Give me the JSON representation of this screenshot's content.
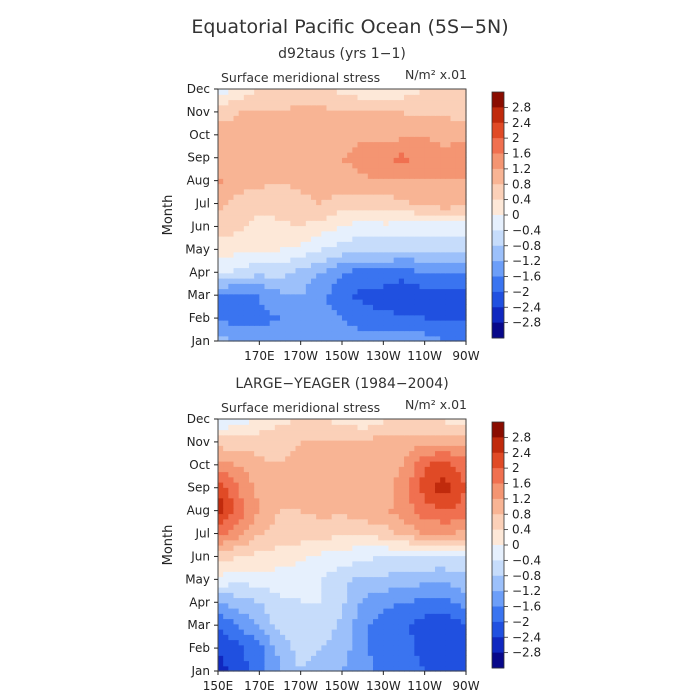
{
  "figure": {
    "title": "Equatorial Pacific Ocean (5S−5N)"
  },
  "chart_data": [
    {
      "type": "heatmap",
      "title": "d92taus (yrs 1−1)",
      "subtitle": "Surface meridional stress",
      "units_label": "N/m² x.01",
      "ylabel": "Month",
      "x_ticks": [
        "170E",
        "170W",
        "150W",
        "130W",
        "110W",
        "90W"
      ],
      "x_range": [
        "150E",
        "90W"
      ],
      "y_ticks": [
        "Jan",
        "Feb",
        "Mar",
        "Apr",
        "May",
        "Jun",
        "Jul",
        "Aug",
        "Sep",
        "Oct",
        "Nov",
        "Dec"
      ],
      "colorbar_levels": [
        "2.8",
        "2.4",
        "2",
        "1.6",
        "1.2",
        "0.8",
        "0.4",
        "0",
        "−0.4",
        "−0.8",
        "−1.2",
        "−1.6",
        "−2",
        "−2.4",
        "−2.8"
      ],
      "x_nodes": [
        "150E",
        "160E",
        "170E",
        "180",
        "170W",
        "160W",
        "150W",
        "140W",
        "130W",
        "120W",
        "110W",
        "100W",
        "90W"
      ],
      "months": [
        "Jan",
        "Feb",
        "Mar",
        "Apr",
        "May",
        "Jun",
        "Jul",
        "Aug",
        "Sep",
        "Oct",
        "Nov",
        "Dec"
      ],
      "values": [
        [
          -1.0,
          -1.3,
          -1.4,
          -1.4,
          -1.3,
          -1.2,
          -1.3,
          -1.4,
          -1.3,
          -1.3,
          -1.4,
          -1.6,
          -1.6
        ],
        [
          -1.6,
          -1.8,
          -1.7,
          -1.6,
          -1.5,
          -1.4,
          -1.6,
          -1.8,
          -1.9,
          -1.9,
          -2.0,
          -2.1,
          -2.0
        ],
        [
          -1.7,
          -1.8,
          -1.6,
          -1.3,
          -1.2,
          -1.5,
          -1.9,
          -2.1,
          -2.2,
          -2.4,
          -2.2,
          -2.2,
          -2.1
        ],
        [
          -0.3,
          -0.5,
          -0.7,
          -0.6,
          -1.0,
          -1.2,
          -1.6,
          -1.8,
          -1.7,
          -1.8,
          -1.6,
          -1.7,
          -1.5
        ],
        [
          0.2,
          0.1,
          0.0,
          0.0,
          -0.1,
          -0.4,
          -0.6,
          -0.7,
          -0.7,
          -0.8,
          -0.8,
          -0.7,
          -0.6
        ],
        [
          0.6,
          0.5,
          0.2,
          0.3,
          0.4,
          0.2,
          0.0,
          -0.2,
          -0.1,
          -0.2,
          -0.2,
          -0.2,
          -0.2
        ],
        [
          0.9,
          0.7,
          0.6,
          0.6,
          0.7,
          0.8,
          0.6,
          0.5,
          0.6,
          0.7,
          0.9,
          1.0,
          0.9
        ],
        [
          1.3,
          0.9,
          0.9,
          0.8,
          0.9,
          1.0,
          1.0,
          1.1,
          1.2,
          1.1,
          1.2,
          1.2,
          1.2
        ],
        [
          0.9,
          1.0,
          1.1,
          1.2,
          1.2,
          1.2,
          1.2,
          1.4,
          1.6,
          1.7,
          1.4,
          1.3,
          1.6
        ],
        [
          1.0,
          1.0,
          1.0,
          1.1,
          1.1,
          1.1,
          1.0,
          1.1,
          1.1,
          1.1,
          1.2,
          1.1,
          1.0
        ],
        [
          0.6,
          0.8,
          0.8,
          0.8,
          0.9,
          0.9,
          0.8,
          0.9,
          0.8,
          0.8,
          0.7,
          0.7,
          0.7
        ],
        [
          -0.2,
          0.1,
          0.4,
          0.6,
          0.6,
          0.5,
          0.3,
          0.1,
          0.0,
          0.2,
          0.4,
          0.5,
          0.4
        ]
      ]
    },
    {
      "type": "heatmap",
      "title": "LARGE−YEAGER (1984−2004)",
      "subtitle": "Surface meridional stress",
      "units_label": "N/m² x.01",
      "ylabel": "Month",
      "x_ticks": [
        "150E",
        "170E",
        "170W",
        "150W",
        "130W",
        "110W",
        "90W"
      ],
      "x_range": [
        "150E",
        "90W"
      ],
      "y_ticks": [
        "Jan",
        "Feb",
        "Mar",
        "Apr",
        "May",
        "Jun",
        "Jul",
        "Aug",
        "Sep",
        "Oct",
        "Nov",
        "Dec"
      ],
      "colorbar_levels": [
        "2.8",
        "2.4",
        "2",
        "1.6",
        "1.2",
        "0.8",
        "0.4",
        "0",
        "−0.4",
        "−0.8",
        "−1.2",
        "−1.6",
        "−2",
        "−2.4",
        "−2.8"
      ],
      "x_nodes": [
        "150E",
        "160E",
        "170E",
        "180",
        "170W",
        "160W",
        "150W",
        "140W",
        "130W",
        "120W",
        "110W",
        "100W",
        "90W"
      ],
      "months": [
        "Jan",
        "Feb",
        "Mar",
        "Apr",
        "May",
        "Jun",
        "Jul",
        "Aug",
        "Sep",
        "Oct",
        "Nov",
        "Dec"
      ],
      "values": [
        [
          -2.6,
          -2.2,
          -1.8,
          -1.2,
          -0.8,
          -1.0,
          -1.2,
          -1.5,
          -1.7,
          -1.8,
          -2.0,
          -2.1,
          -2.0
        ],
        [
          -2.4,
          -2.1,
          -1.7,
          -1.1,
          -0.6,
          -0.8,
          -1.0,
          -1.5,
          -1.8,
          -1.9,
          -2.1,
          -2.3,
          -2.0
        ],
        [
          -2.0,
          -1.6,
          -1.2,
          -0.6,
          -0.5,
          -0.6,
          -0.9,
          -1.5,
          -1.8,
          -1.9,
          -2.2,
          -2.3,
          -2.0
        ],
        [
          -1.2,
          -1.0,
          -0.8,
          -0.5,
          -0.4,
          -0.4,
          -0.7,
          -1.3,
          -1.5,
          -1.6,
          -1.7,
          -1.7,
          -1.5
        ],
        [
          -0.1,
          -0.3,
          -0.2,
          -0.2,
          -0.3,
          -0.4,
          -0.7,
          -0.9,
          -0.9,
          -1.0,
          -1.1,
          -1.1,
          -0.9
        ],
        [
          0.6,
          0.4,
          0.3,
          0.2,
          0.1,
          -0.1,
          -0.2,
          -0.3,
          -0.4,
          -0.5,
          -0.4,
          -0.5,
          -0.4
        ],
        [
          1.8,
          1.3,
          0.8,
          0.6,
          0.6,
          0.6,
          0.4,
          0.4,
          0.6,
          0.9,
          1.2,
          1.2,
          1.1
        ],
        [
          2.6,
          1.8,
          1.2,
          0.8,
          0.8,
          0.9,
          0.9,
          1.1,
          1.1,
          1.4,
          1.8,
          2.0,
          1.8
        ],
        [
          2.4,
          1.6,
          1.1,
          0.8,
          0.9,
          1.0,
          1.1,
          1.2,
          1.0,
          1.4,
          2.2,
          2.6,
          2.0
        ],
        [
          1.4,
          1.2,
          0.9,
          0.8,
          0.9,
          1.0,
          1.0,
          1.1,
          1.0,
          1.2,
          2.0,
          2.2,
          1.8
        ],
        [
          0.6,
          0.6,
          0.6,
          0.7,
          0.8,
          0.8,
          0.8,
          0.9,
          1.0,
          1.0,
          1.1,
          1.1,
          1.0
        ],
        [
          -0.4,
          -0.2,
          0.1,
          0.3,
          0.4,
          0.4,
          0.3,
          0.1,
          0.3,
          0.5,
          0.4,
          0.3,
          0.1
        ]
      ]
    }
  ],
  "colors": {
    "scale": [
      "#08088a",
      "#1028c0",
      "#2050e0",
      "#3a74f0",
      "#6c9ef8",
      "#9cc0fa",
      "#c6dcfb",
      "#e6f0fd",
      "#fde8d8",
      "#fbd0b8",
      "#f8b494",
      "#f49572",
      "#f07050",
      "#e04a26",
      "#c02a0c",
      "#8a0c00"
    ],
    "axis": "#222222",
    "box": "#444444"
  }
}
